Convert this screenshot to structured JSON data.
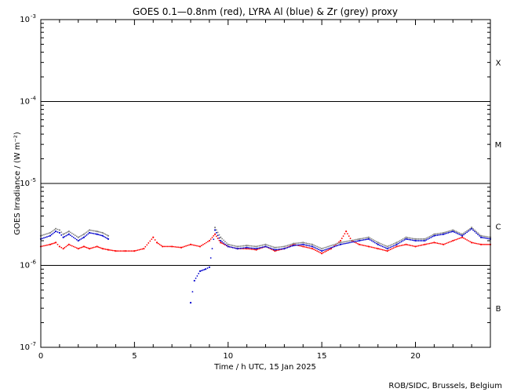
{
  "chart_data": {
    "type": "scatter",
    "title": "GOES 0.1—0.8nm (red), LYRA Al (blue) & Zr (grey) proxy",
    "xlabel": "Time / h UTC, 15 Jan 2025",
    "ylabel": "GOES Irradiance / (W m⁻²)",
    "xlim": [
      0,
      24
    ],
    "ylim": [
      1e-07,
      0.001
    ],
    "y_scale": "log",
    "x_ticks": [
      0,
      5,
      10,
      15,
      20
    ],
    "y_tick_labels": [
      {
        "base": "10",
        "exp": "-7",
        "value": 1e-07
      },
      {
        "base": "10",
        "exp": "-6",
        "value": 1e-06
      },
      {
        "base": "10",
        "exp": "-5",
        "value": 1e-05
      },
      {
        "base": "10",
        "exp": "-4",
        "value": 0.0001
      },
      {
        "base": "10",
        "exp": "-3",
        "value": 0.001
      }
    ],
    "class_levels": [
      {
        "label": "B",
        "value": 3e-07
      },
      {
        "label": "C",
        "value": 3e-06
      },
      {
        "label": "M",
        "value": 3e-05
      },
      {
        "label": "X",
        "value": 0.0003
      }
    ],
    "threshold_lines": [
      1e-06,
      1e-05,
      0.0001
    ],
    "colors": {
      "goes": "#ff0000",
      "lyra_al": "#0000cc",
      "lyra_zr": "#808080",
      "axes": "#000000"
    },
    "series": [
      {
        "name": "GOES 0.1—0.8nm",
        "color": "#ff0000",
        "x": [
          0,
          0.5,
          0.8,
          1.0,
          1.2,
          1.5,
          2.0,
          2.3,
          2.6,
          3.0,
          3.3,
          3.6,
          4.0,
          4.5,
          5.0,
          5.5,
          6.0,
          6.2,
          6.5,
          7.0,
          7.5,
          8.0,
          8.5,
          9.0,
          9.3,
          9.6,
          10.0,
          10.5,
          11.0,
          11.5,
          12.0,
          12.5,
          13.0,
          13.5,
          14.0,
          14.5,
          15.0,
          15.5,
          16.0,
          16.3,
          16.6,
          17.0,
          17.5,
          18.0,
          18.5,
          19.0,
          19.5,
          20.0,
          20.5,
          21.0,
          21.5,
          22.0,
          22.5,
          23.0,
          23.5,
          24.0
        ],
        "y": [
          1.7e-06,
          1.8e-06,
          1.9e-06,
          1.7e-06,
          1.6e-06,
          1.8e-06,
          1.6e-06,
          1.7e-06,
          1.6e-06,
          1.7e-06,
          1.6e-06,
          1.55e-06,
          1.5e-06,
          1.5e-06,
          1.5e-06,
          1.6e-06,
          2.2e-06,
          1.9e-06,
          1.7e-06,
          1.7e-06,
          1.65e-06,
          1.8e-06,
          1.7e-06,
          2e-06,
          2.4e-06,
          1.9e-06,
          1.7e-06,
          1.6e-06,
          1.6e-06,
          1.55e-06,
          1.7e-06,
          1.5e-06,
          1.6e-06,
          1.8e-06,
          1.7e-06,
          1.6e-06,
          1.4e-06,
          1.6e-06,
          2e-06,
          2.6e-06,
          2e-06,
          1.8e-06,
          1.7e-06,
          1.6e-06,
          1.5e-06,
          1.7e-06,
          1.8e-06,
          1.7e-06,
          1.8e-06,
          1.9e-06,
          1.8e-06,
          2e-06,
          2.2e-06,
          1.9e-06,
          1.8e-06,
          1.8e-06
        ]
      },
      {
        "name": "LYRA Al",
        "color": "#0000cc",
        "x": [
          0,
          0.5,
          0.8,
          1.0,
          1.2,
          1.5,
          2.0,
          2.3,
          2.6,
          3.0,
          3.3,
          3.6,
          8.0,
          8.2,
          8.5,
          8.8,
          9.0,
          9.3,
          9.6,
          10.0,
          10.5,
          11.0,
          11.5,
          12.0,
          12.5,
          13.0,
          13.5,
          14.0,
          14.5,
          15.0,
          16.0,
          17.0,
          17.5,
          18.0,
          18.5,
          19.0,
          19.5,
          20.0,
          20.5,
          21.0,
          21.5,
          22.0,
          22.5,
          23.0,
          23.5,
          24.0
        ],
        "y": [
          2.1e-06,
          2.3e-06,
          2.6e-06,
          2.5e-06,
          2.2e-06,
          2.4e-06,
          2e-06,
          2.2e-06,
          2.5e-06,
          2.4e-06,
          2.3e-06,
          2.1e-06,
          3.5e-07,
          6.5e-07,
          8.5e-07,
          9e-07,
          9.5e-07,
          2.7e-06,
          2e-06,
          1.7e-06,
          1.6e-06,
          1.65e-06,
          1.6e-06,
          1.7e-06,
          1.55e-06,
          1.6e-06,
          1.75e-06,
          1.8e-06,
          1.7e-06,
          1.5e-06,
          1.8e-06,
          2e-06,
          2.1e-06,
          1.8e-06,
          1.6e-06,
          1.8e-06,
          2.1e-06,
          2e-06,
          2e-06,
          2.3e-06,
          2.4e-06,
          2.6e-06,
          2.3e-06,
          2.8e-06,
          2.2e-06,
          2.1e-06
        ]
      },
      {
        "name": "LYRA Zr",
        "color": "#808080",
        "x": [
          0,
          0.5,
          0.8,
          1.0,
          1.2,
          1.5,
          2.0,
          2.3,
          2.6,
          3.0,
          3.3,
          3.6,
          9.3,
          9.6,
          10.0,
          10.5,
          11.0,
          11.5,
          12.0,
          12.5,
          13.0,
          13.5,
          14.0,
          14.5,
          15.0,
          16.0,
          17.0,
          17.5,
          18.0,
          18.5,
          19.0,
          19.5,
          20.0,
          20.5,
          21.0,
          21.5,
          22.0,
          22.5,
          23.0,
          23.5,
          24.0
        ],
        "y": [
          2.3e-06,
          2.5e-06,
          2.8e-06,
          2.7e-06,
          2.4e-06,
          2.6e-06,
          2.2e-06,
          2.4e-06,
          2.7e-06,
          2.6e-06,
          2.5e-06,
          2.3e-06,
          2.9e-06,
          2.2e-06,
          1.8e-06,
          1.7e-06,
          1.75e-06,
          1.7e-06,
          1.8e-06,
          1.65e-06,
          1.7e-06,
          1.85e-06,
          1.9e-06,
          1.8e-06,
          1.6e-06,
          1.9e-06,
          2.1e-06,
          2.2e-06,
          1.9e-06,
          1.7e-06,
          1.9e-06,
          2.2e-06,
          2.1e-06,
          2.1e-06,
          2.4e-06,
          2.5e-06,
          2.7e-06,
          2.4e-06,
          2.9e-06,
          2.3e-06,
          2.2e-06
        ]
      }
    ]
  },
  "footer": {
    "credit": "ROB/SIDC, Brussels, Belgium"
  }
}
